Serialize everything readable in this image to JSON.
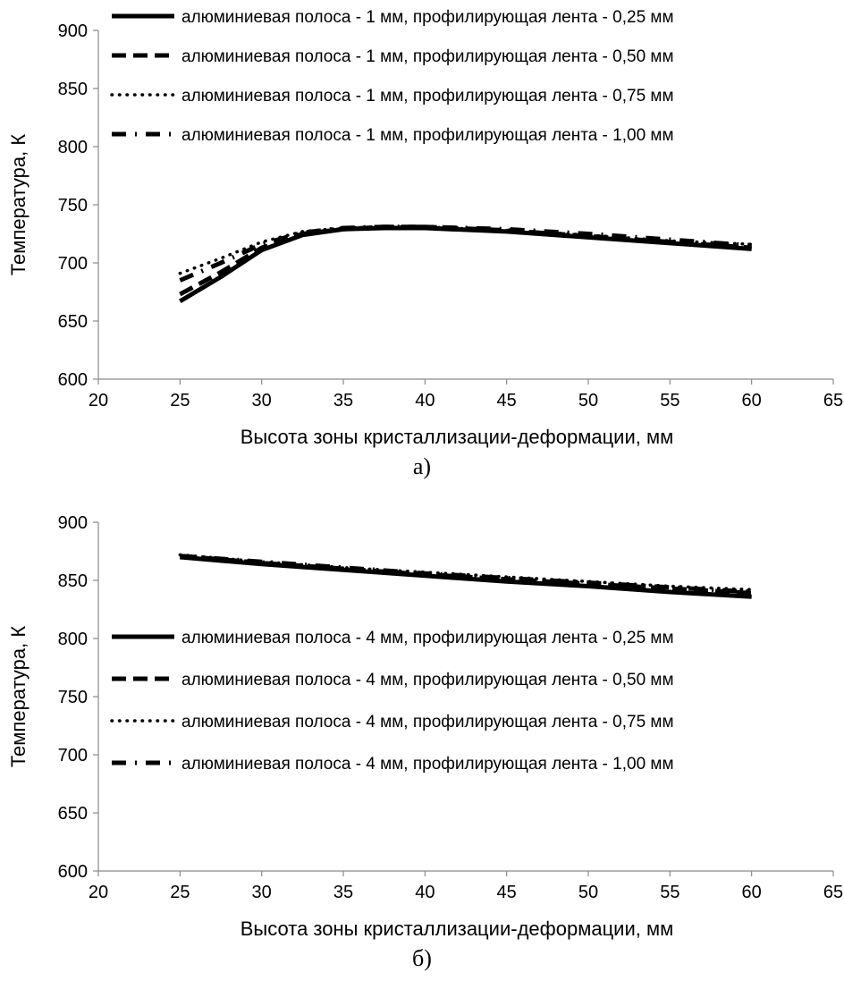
{
  "chart_data": [
    {
      "type": "line",
      "caption": "а)",
      "xlabel": "Высота зоны кристаллизации-деформации, мм",
      "ylabel": "Температура, К",
      "xlim": [
        20,
        65
      ],
      "ylim": [
        600,
        900
      ],
      "xticks": [
        "20",
        "25",
        "30",
        "35",
        "40",
        "45",
        "50",
        "55",
        "60",
        "65"
      ],
      "yticks": [
        "600",
        "650",
        "700",
        "750",
        "800",
        "850",
        "900"
      ],
      "grid": false,
      "legend_position": "top",
      "x": [
        25,
        27.5,
        30,
        32.5,
        35,
        37.5,
        40,
        45,
        50,
        55,
        60
      ],
      "series": [
        {
          "name": "алюминиевая полоса - 1 мм, профилирующая лента - 0,25 мм",
          "style": "solid",
          "values": [
            667,
            688,
            711,
            724,
            729,
            730,
            730,
            727,
            722,
            717,
            712
          ]
        },
        {
          "name": "алюминиевая полоса - 1 мм, профилирующая лента - 0,50 мм",
          "style": "dash",
          "values": [
            673,
            692,
            713,
            725,
            729,
            731,
            731,
            728,
            723,
            718,
            713
          ]
        },
        {
          "name": "алюминиевая полоса - 1 мм, профилирующая лента - 0,75 мм",
          "style": "dot",
          "values": [
            691,
            704,
            718,
            727,
            730,
            731,
            731,
            728,
            724,
            719,
            716
          ]
        },
        {
          "name": "алюминиевая полоса - 1 мм, профилирующая лента - 1,00 мм",
          "style": "dashdot",
          "values": [
            685,
            700,
            716,
            726,
            730,
            731,
            731,
            729,
            725,
            720,
            715
          ]
        }
      ]
    },
    {
      "type": "line",
      "caption": "б)",
      "xlabel": "Высота зоны кристаллизации-деформации, мм",
      "ylabel": "Температура, К",
      "xlim": [
        20,
        65
      ],
      "ylim": [
        600,
        900
      ],
      "xticks": [
        "20",
        "25",
        "30",
        "35",
        "40",
        "45",
        "50",
        "55",
        "60",
        "65"
      ],
      "yticks": [
        "600",
        "650",
        "700",
        "750",
        "800",
        "850",
        "900"
      ],
      "grid": false,
      "legend_position": "bottom",
      "x": [
        25,
        30,
        35,
        40,
        45,
        50,
        55,
        60
      ],
      "series": [
        {
          "name": "алюминиевая полоса - 4 мм, профилирующая лента - 0,25 мм",
          "style": "solid",
          "values": [
            870,
            864,
            859,
            854,
            849,
            845,
            840,
            836
          ]
        },
        {
          "name": "алюминиевая полоса - 4 мм, профилирующая лента - 0,50 мм",
          "style": "dash",
          "values": [
            871,
            865,
            860,
            855,
            851,
            847,
            843,
            839
          ]
        },
        {
          "name": "алюминиевая полоса - 4 мм, профилирующая лента - 0,75 мм",
          "style": "dot",
          "values": [
            872,
            866,
            861,
            857,
            853,
            849,
            845,
            842
          ]
        },
        {
          "name": "алюминиевая полоса - 4 мм, профилирующая лента - 1,00 мм",
          "style": "dashdot",
          "values": [
            871,
            866,
            861,
            856,
            852,
            848,
            844,
            840
          ]
        }
      ]
    }
  ]
}
